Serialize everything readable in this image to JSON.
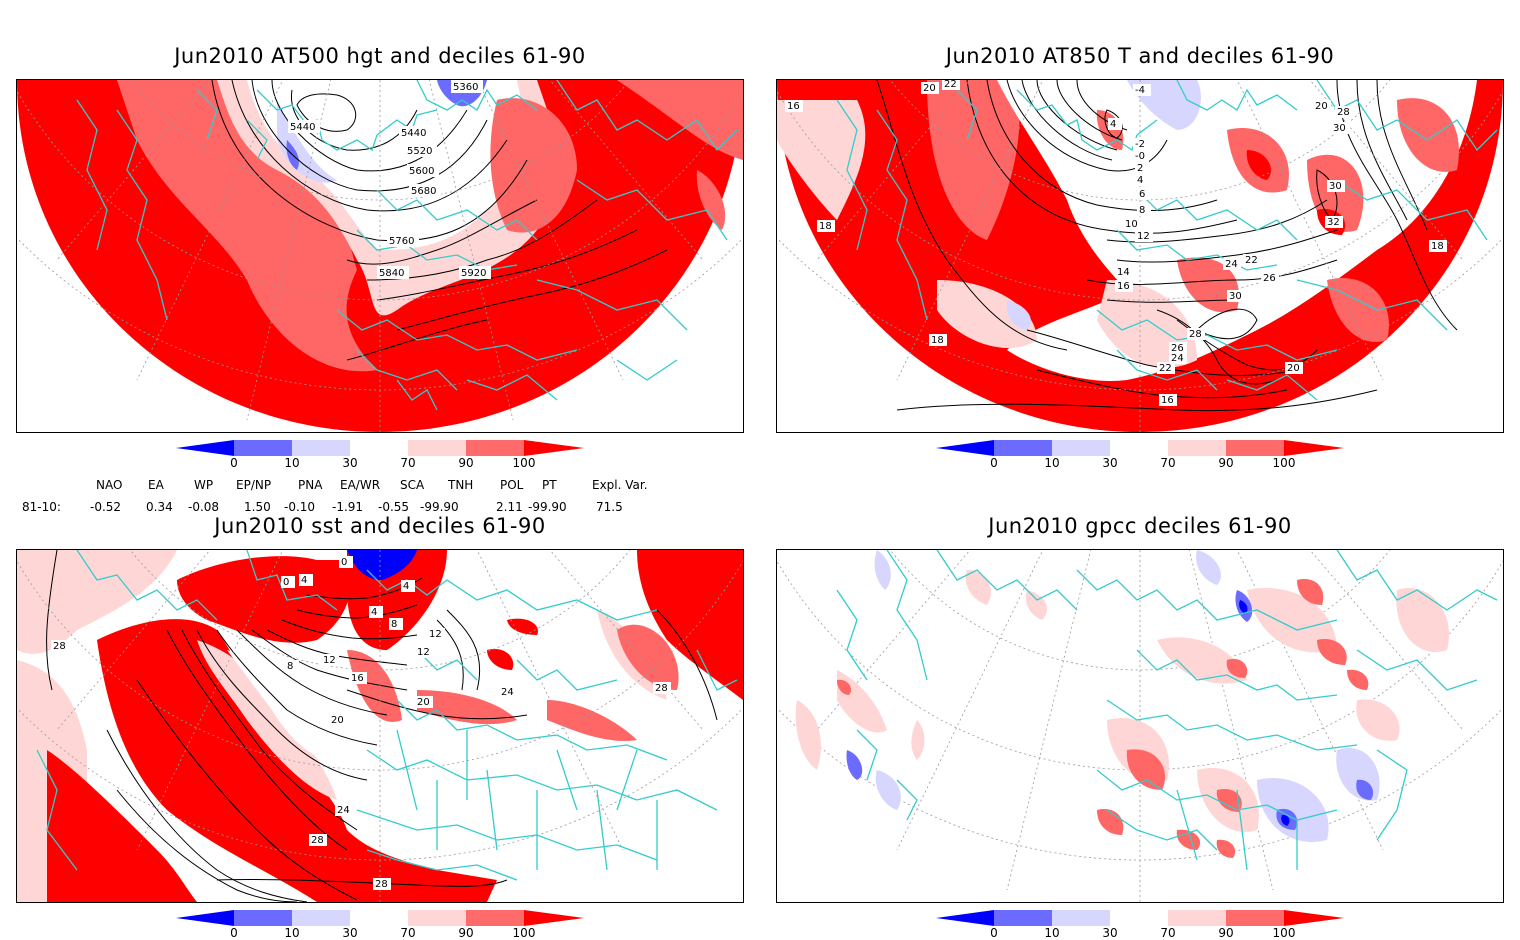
{
  "panels": [
    {
      "title": "Jun2010 AT500 hgt and deciles 61-90",
      "contour_labels": [
        "5360",
        "5440",
        "5440",
        "5520",
        "5600",
        "5680",
        "5760",
        "5840",
        "5920"
      ]
    },
    {
      "title": "Jun2010 AT850 T and deciles 61-90",
      "contour_labels": [
        "20",
        "22",
        "16",
        "-4",
        "4",
        "-2",
        "-0",
        "2",
        "4",
        "6",
        "8",
        "10",
        "12",
        "14",
        "16",
        "18",
        "18",
        "18",
        "20",
        "28",
        "30",
        "30",
        "32",
        "22",
        "24",
        "26",
        "30",
        "28",
        "26",
        "24",
        "22",
        "20",
        "16"
      ]
    },
    {
      "title": "Jun2010 sst and deciles 61-90",
      "contour_labels": [
        "28",
        "0",
        "4",
        "8",
        "12",
        "16",
        "20",
        "24",
        "28",
        "28",
        "20",
        "24",
        "28",
        "12",
        "12",
        "8",
        "4",
        "0",
        "4"
      ]
    },
    {
      "title": "Jun2010 gpcc deciles 61-90",
      "contour_labels": []
    }
  ],
  "colorbar": {
    "ticks": [
      "0",
      "10",
      "30",
      "70",
      "90",
      "100"
    ],
    "colors": [
      "#0000ff",
      "#6b6bff",
      "#d6d6ff",
      "#ffffff",
      "#ffd6d6",
      "#ff6b6b",
      "#ff0000"
    ]
  },
  "colors": {
    "strong_red": "#ff0000",
    "mid_red": "#ff6666",
    "light_red": "#ffd6d6",
    "light_blue": "#d6d6ff",
    "mid_blue": "#6b6bff",
    "strong_blue": "#0000ff",
    "coast": "#33cccc",
    "contour": "#000000",
    "grid": "#9a9a9a"
  },
  "indices": {
    "headers": [
      "NAO",
      "EA",
      "WP",
      "EP/NP",
      "PNA",
      "EA/WR",
      "SCA",
      "TNH",
      "POL",
      "PT",
      "Expl. Var."
    ],
    "row_label": "81-10:",
    "values": [
      "-0.52",
      "0.34",
      "-0.08",
      "1.50",
      "-0.10",
      "-1.91",
      "-0.55",
      "-99.90",
      "2.11",
      "-99.90",
      "71.5"
    ]
  }
}
